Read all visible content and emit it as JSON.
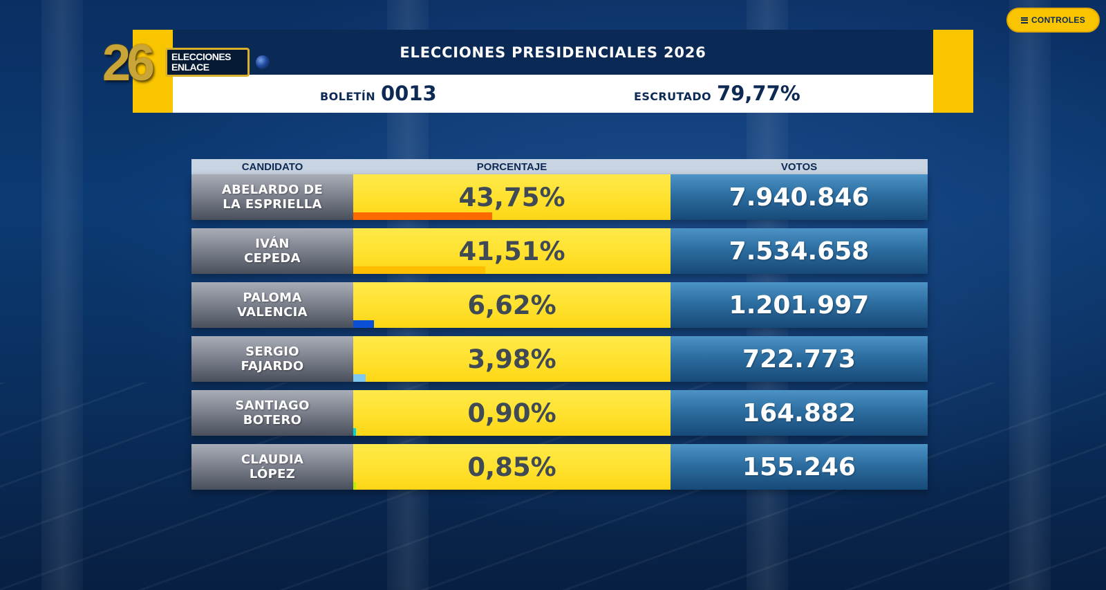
{
  "controls": {
    "label": "CONTROLES",
    "icon": "menu-icon"
  },
  "logo": {
    "number": "26",
    "line1": "ELECCIONES",
    "line2": "ENLACE"
  },
  "header": {
    "title": "ELECCIONES PRESIDENCIALES 2026",
    "boletin_label": "BOLETÍN",
    "boletin_value": "0013",
    "escrutado_label": "ESCRUTADO",
    "escrutado_value": "79,77%"
  },
  "table": {
    "columns": [
      "CANDIDATO",
      "PORCENTAJE",
      "VOTOS"
    ],
    "rows": [
      {
        "name1": "ABELARDO DE",
        "name2": "LA ESPRIELLA",
        "pct_text": "43,75%",
        "pct": 43.75,
        "votes": "7.940.846",
        "bar_color": "#ff6a00"
      },
      {
        "name1": "IVÁN",
        "name2": "CEPEDA",
        "pct_text": "41,51%",
        "pct": 41.51,
        "votes": "7.534.658",
        "bar_color": "#ffbf00"
      },
      {
        "name1": "PALOMA",
        "name2": "VALENCIA",
        "pct_text": "6,62%",
        "pct": 6.62,
        "votes": "1.201.997",
        "bar_color": "#0a4fd6"
      },
      {
        "name1": "SERGIO",
        "name2": "FAJARDO",
        "pct_text": "3,98%",
        "pct": 3.98,
        "votes": "722.773",
        "bar_color": "#7fc8f0"
      },
      {
        "name1": "SANTIAGO",
        "name2": "BOTERO",
        "pct_text": "0,90%",
        "pct": 0.9,
        "votes": "164.882",
        "bar_color": "#00d4d4"
      },
      {
        "name1": "CLAUDIA",
        "name2": "LÓPEZ",
        "pct_text": "0,85%",
        "pct": 0.85,
        "votes": "155.246",
        "bar_color": "#b6f000"
      }
    ]
  },
  "colors": {
    "accent_yellow": "#f9c400",
    "header_navy": "#0a2a55",
    "text_navy": "#0d2a54"
  }
}
